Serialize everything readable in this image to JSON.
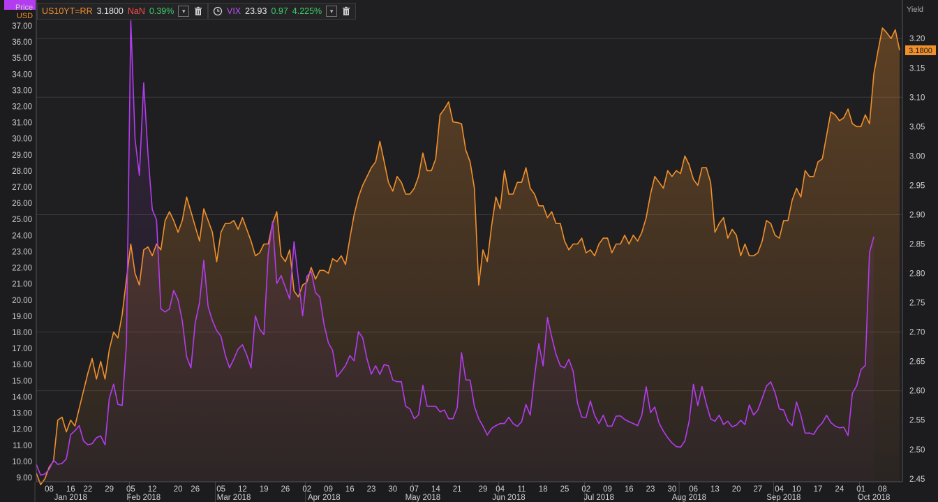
{
  "units": {
    "price": "Price",
    "currency": "USD",
    "yield": "Yield"
  },
  "legend": [
    {
      "symbol": "US10YT=RR",
      "last": "3.1800",
      "change": "NaN",
      "pct": "0.39%"
    },
    {
      "symbol": "VIX",
      "last": "23.93",
      "change": "0.97",
      "pct": "4.225%"
    }
  ],
  "colors": {
    "us10y": "#f0902c",
    "vix": "#b43cf0",
    "background": "#1c1c1e",
    "grid": "#3a3a3c"
  },
  "chart_data": {
    "type": "line",
    "x_ticks": [
      "08",
      "16",
      "22",
      "29",
      "05",
      "12",
      "20",
      "26",
      "05",
      "12",
      "19",
      "26",
      "02",
      "09",
      "16",
      "23",
      "30",
      "07",
      "14",
      "21",
      "29",
      "04",
      "11",
      "18",
      "25",
      "02",
      "09",
      "16",
      "23",
      "30",
      "06",
      "13",
      "20",
      "27",
      "04",
      "10",
      "17",
      "24",
      "01",
      "08"
    ],
    "x_tick_index": [
      3,
      8,
      12,
      17,
      22,
      27,
      33,
      37,
      43,
      48,
      53,
      58,
      63,
      68,
      73,
      78,
      83,
      88,
      93,
      98,
      104,
      108,
      113,
      118,
      123,
      128,
      133,
      138,
      143,
      148,
      153,
      158,
      163,
      168,
      173,
      177,
      182,
      187,
      192,
      197
    ],
    "month_labels": [
      "Jan 2018",
      "Feb 2018",
      "Mar 2018",
      "Apr 2018",
      "May 2018",
      "Jun 2018",
      "Jul 2018",
      "Aug 2018",
      "Sep 2018",
      "Oct 2018"
    ],
    "month_label_index": [
      8,
      25,
      46,
      67,
      90,
      110,
      131,
      152,
      174,
      195
    ],
    "left_axis": {
      "label": "Price USD",
      "ticks": [
        "9.00",
        "10.00",
        "11.00",
        "12.00",
        "13.00",
        "14.00",
        "15.00",
        "16.00",
        "17.00",
        "18.00",
        "19.00",
        "20.00",
        "21.00",
        "22.00",
        "23.00",
        "24.00",
        "25.00",
        "26.00",
        "27.00",
        "28.00",
        "29.00",
        "30.00",
        "31.00",
        "32.00",
        "33.00",
        "34.00",
        "35.00",
        "36.00",
        "37.00"
      ],
      "range": [
        9.0,
        37.3
      ]
    },
    "right_axis": {
      "label": "Yield",
      "ticks": [
        "2.45",
        "2.50",
        "2.55",
        "2.60",
        "2.65",
        "2.70",
        "2.75",
        "2.80",
        "2.85",
        "2.90",
        "2.95",
        "3.00",
        "3.05",
        "3.10",
        "3.15",
        "3.20"
      ],
      "range": [
        2.445,
        3.23
      ]
    },
    "series": [
      {
        "name": "US10YT=RR",
        "axis": "right",
        "last_label": "3.1800",
        "values": [
          2.46,
          2.44,
          2.45,
          2.47,
          2.48,
          2.55,
          2.555,
          2.53,
          2.55,
          2.54,
          2.57,
          2.6,
          2.63,
          2.655,
          2.62,
          2.65,
          2.62,
          2.67,
          2.7,
          2.69,
          2.73,
          2.79,
          2.85,
          2.8,
          2.78,
          2.84,
          2.845,
          2.83,
          2.85,
          2.84,
          2.89,
          2.905,
          2.89,
          2.87,
          2.89,
          2.93,
          2.905,
          2.88,
          2.855,
          2.91,
          2.89,
          2.87,
          2.82,
          2.87,
          2.885,
          2.885,
          2.89,
          2.875,
          2.895,
          2.875,
          2.855,
          2.83,
          2.835,
          2.85,
          2.85,
          2.885,
          2.905,
          2.83,
          2.82,
          2.84,
          2.77,
          2.76,
          2.78,
          2.785,
          2.81,
          2.79,
          2.805,
          2.805,
          2.8,
          2.825,
          2.82,
          2.83,
          2.815,
          2.86,
          2.9,
          2.93,
          2.95,
          2.965,
          2.98,
          2.99,
          3.025,
          2.99,
          2.955,
          2.94,
          2.965,
          2.955,
          2.935,
          2.935,
          2.945,
          2.965,
          3.005,
          2.975,
          2.975,
          2.995,
          3.07,
          3.08,
          3.092,
          3.058,
          3.057,
          3.055,
          3.01,
          2.99,
          2.945,
          2.78,
          2.84,
          2.82,
          2.88,
          2.93,
          2.91,
          2.975,
          2.935,
          2.935,
          2.955,
          2.955,
          2.98,
          2.945,
          2.935,
          2.915,
          2.915,
          2.895,
          2.905,
          2.885,
          2.885,
          2.855,
          2.84,
          2.85,
          2.85,
          2.86,
          2.835,
          2.84,
          2.83,
          2.85,
          2.86,
          2.86,
          2.835,
          2.85,
          2.85,
          2.865,
          2.85,
          2.865,
          2.855,
          2.87,
          2.895,
          2.935,
          2.965,
          2.955,
          2.945,
          2.975,
          2.965,
          2.975,
          2.97,
          3.0,
          2.985,
          2.96,
          2.95,
          2.98,
          2.98,
          2.955,
          2.87,
          2.885,
          2.895,
          2.86,
          2.875,
          2.865,
          2.83,
          2.85,
          2.83,
          2.83,
          2.835,
          2.855,
          2.89,
          2.885,
          2.865,
          2.86,
          2.89,
          2.89,
          2.925,
          2.945,
          2.93,
          2.975,
          2.965,
          2.965,
          2.99,
          2.995,
          3.035,
          3.075,
          3.07,
          3.06,
          3.065,
          3.08,
          3.055,
          3.05,
          3.05,
          3.07,
          3.055,
          3.14,
          3.18,
          3.218,
          3.21,
          3.2,
          3.215,
          3.18
        ]
      },
      {
        "name": "VIX",
        "axis": "left",
        "last_label": "23.93",
        "values": [
          9.82,
          9.15,
          9.22,
          9.52,
          10.08,
          9.82,
          9.88,
          10.16,
          11.66,
          11.91,
          12.22,
          11.27,
          11.03,
          11.1,
          11.47,
          11.58,
          11.03,
          13.91,
          14.79,
          13.54,
          13.47,
          17.31,
          37.32,
          29.98,
          27.73,
          33.46,
          29.06,
          25.61,
          24.97,
          19.46,
          19.26,
          19.46,
          20.6,
          20.02,
          18.72,
          16.49,
          15.8,
          18.59,
          19.85,
          22.47,
          19.59,
          18.73,
          18.11,
          17.76,
          16.59,
          15.8,
          16.35,
          16.97,
          17.23,
          16.59,
          15.8,
          19.02,
          18.2,
          17.86,
          22.88,
          24.87,
          21.03,
          21.52,
          20.8,
          20.06,
          23.62,
          21.36,
          19.02,
          21.47,
          21.77,
          20.47,
          20.19,
          18.49,
          17.35,
          16.88,
          15.25,
          15.58,
          15.94,
          16.56,
          16.24,
          18.05,
          17.66,
          16.35,
          15.41,
          15.93,
          15.4,
          16.0,
          15.93,
          15.05,
          14.94,
          14.94,
          13.42,
          13.26,
          12.65,
          12.88,
          14.72,
          13.42,
          13.42,
          13.42,
          13.07,
          13.19,
          12.65,
          12.65,
          13.33,
          16.74,
          15.06,
          15.04,
          13.42,
          12.65,
          12.19,
          11.64,
          12.04,
          12.22,
          12.35,
          12.35,
          12.74,
          12.35,
          12.17,
          12.46,
          13.53,
          12.87,
          15.26,
          17.31,
          15.93,
          18.92,
          17.72,
          16.64,
          15.93,
          15.8,
          16.33,
          15.58,
          13.63,
          12.75,
          12.72,
          13.75,
          12.85,
          12.35,
          12.87,
          12.19,
          12.19,
          12.81,
          12.82,
          12.6,
          12.46,
          12.35,
          12.22,
          12.88,
          14.63,
          13.03,
          13.37,
          12.37,
          11.88,
          11.47,
          11.15,
          10.92,
          10.88,
          11.27,
          12.49,
          14.78,
          13.46,
          14.64,
          13.55,
          12.64,
          12.49,
          12.87,
          12.29,
          12.49,
          12.15,
          12.25,
          12.55,
          12.29,
          13.5,
          12.88,
          13.19,
          13.92,
          14.67,
          14.93,
          14.27,
          13.25,
          13.19,
          12.49,
          12.22,
          13.68,
          12.86,
          11.75,
          11.76,
          11.68,
          12.12,
          12.39,
          12.86,
          12.41,
          12.19,
          12.08,
          12.12,
          11.61,
          14.22,
          14.69,
          15.69,
          15.95,
          22.96,
          23.93
        ]
      }
    ]
  }
}
